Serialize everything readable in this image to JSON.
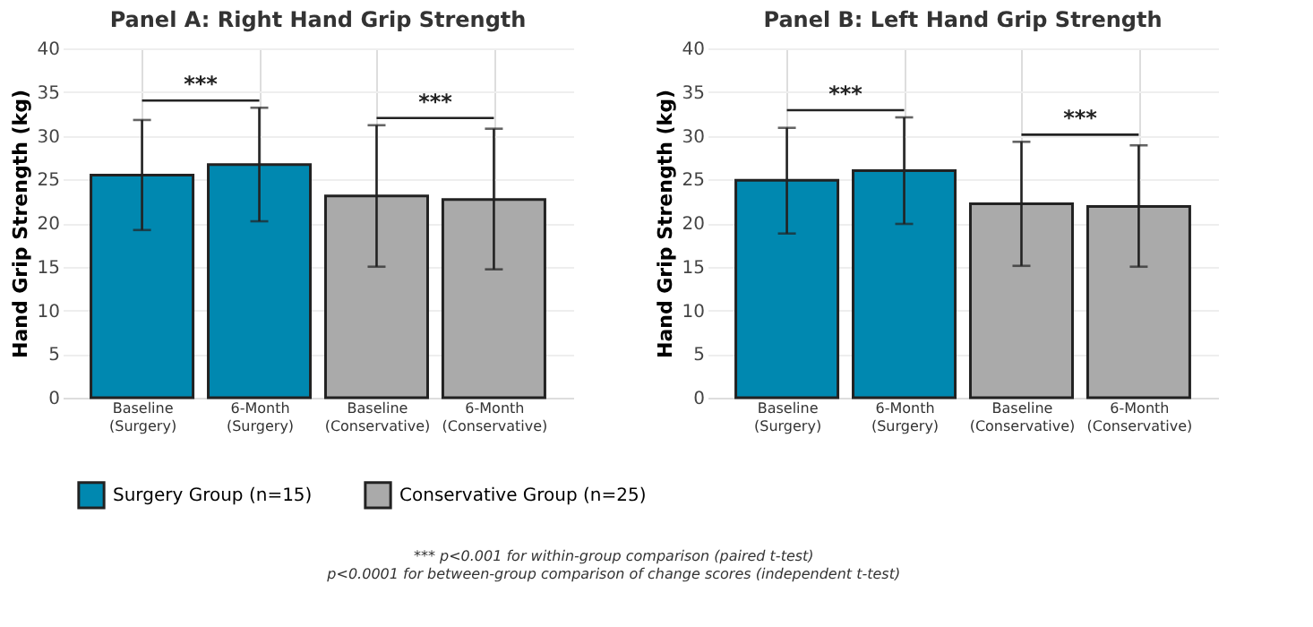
{
  "chart_data": [
    {
      "type": "bar",
      "title": "Panel A: Right Hand Grip Strength",
      "ylabel": "Hand Grip Strength (kg)",
      "categories": [
        "Baseline\n(Surgery)",
        "6-Month\n(Surgery)",
        "Baseline\n(Conservative)",
        "6-Month\n(Conservative)"
      ],
      "series": [
        {
          "name": "Surgery Group (n=15)",
          "color": "#0088b0",
          "values": [
            25.5,
            26.7,
            null,
            null
          ],
          "errors": [
            [
              19.2,
              31.8
            ],
            [
              20.2,
              33.2
            ],
            null,
            null
          ]
        },
        {
          "name": "Conservative Group (n=25)",
          "color": "#aaaaaa",
          "values": [
            null,
            null,
            23.1,
            22.7
          ],
          "errors": [
            null,
            null,
            [
              15.0,
              31.2
            ],
            [
              14.7,
              30.8
            ]
          ]
        }
      ],
      "ylim": [
        0,
        40
      ],
      "yticks": [
        0,
        5,
        10,
        15,
        20,
        25,
        30,
        35,
        40
      ],
      "grid": true,
      "legend": "bottom",
      "annotations": [
        "***",
        "***",
        "*** p<0.001 for within-group comparison (paired t-test)",
        "p<0.0001 for between-group comparison of change scores (independent t-test)"
      ]
    },
    {
      "type": "bar",
      "title": "Panel B: Left Hand Grip Strength",
      "ylabel": "Hand Grip Strength (kg)",
      "categories": [
        "Baseline\n(Surgery)",
        "6-Month\n(Surgery)",
        "Baseline\n(Conservative)",
        "6-Month\n(Conservative)"
      ],
      "series": [
        {
          "name": "Surgery Group (n=15)",
          "color": "#0088b0",
          "values": [
            24.9,
            26.0,
            null,
            null
          ],
          "errors": [
            [
              18.8,
              30.9
            ],
            [
              19.9,
              32.1
            ],
            null,
            null
          ]
        },
        {
          "name": "Conservative Group (n=25)",
          "color": "#aaaaaa",
          "values": [
            null,
            null,
            22.2,
            21.9
          ],
          "errors": [
            null,
            null,
            [
              15.1,
              29.3
            ],
            [
              15.0,
              28.9
            ]
          ]
        }
      ],
      "ylim": [
        0,
        40
      ],
      "yticks": [
        0,
        5,
        10,
        15,
        20,
        25,
        30,
        35,
        40
      ],
      "grid": true,
      "legend": "bottom",
      "annotations": [
        "***",
        "***"
      ]
    }
  ]
}
